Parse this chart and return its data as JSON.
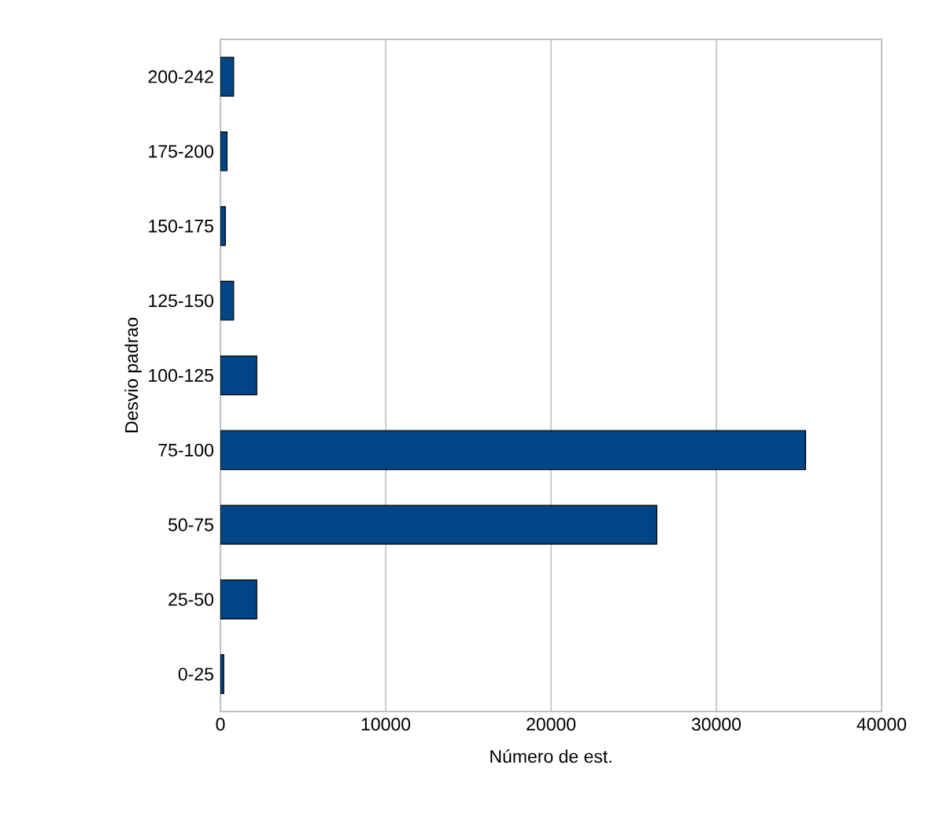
{
  "chart_data": {
    "type": "bar",
    "orientation": "horizontal",
    "xlabel": "Número de est.",
    "ylabel": "Desvio padrao",
    "categories": [
      "200-242",
      "175-200",
      "150-175",
      "125-150",
      "100-125",
      "75-100",
      "50-75",
      "25-50",
      "0-25"
    ],
    "values": [
      800,
      400,
      300,
      800,
      2200,
      35400,
      26400,
      2200,
      200
    ],
    "color": "#004586",
    "xlim": [
      0,
      40000
    ],
    "xticks": [
      0,
      10000,
      20000,
      30000,
      40000
    ],
    "grid": "x"
  }
}
